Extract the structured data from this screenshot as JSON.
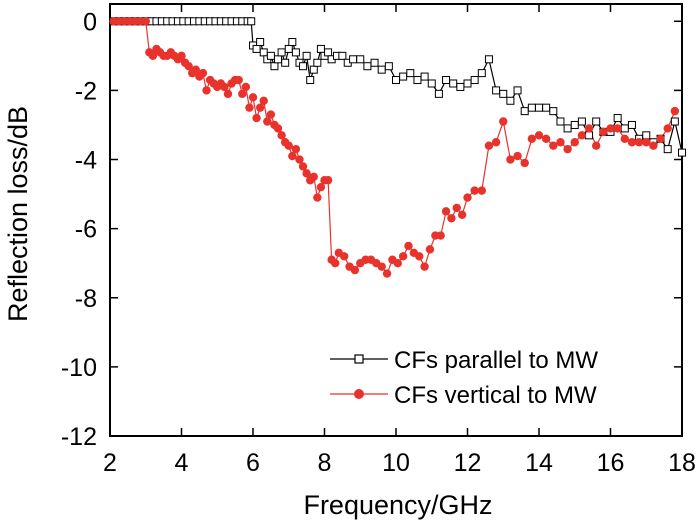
{
  "chart_data": {
    "type": "line",
    "title": "",
    "xlabel": "Frequency/GHz",
    "ylabel": "Reflection loss/dB",
    "xlim": [
      2,
      18
    ],
    "ylim": [
      -12,
      0.5
    ],
    "xticks": [
      2,
      4,
      6,
      8,
      10,
      12,
      14,
      16,
      18
    ],
    "yticks": [
      0,
      -2,
      -4,
      -6,
      -8,
      -10,
      -12
    ],
    "xtick_labels": [
      "2",
      "4",
      "6",
      "8",
      "10",
      "12",
      "14",
      "16",
      "18"
    ],
    "ytick_labels": [
      "0",
      "-2",
      "-4",
      "-6",
      "-8",
      "-10",
      "-12"
    ],
    "grid": false,
    "legend_position": "bottom-right",
    "series": [
      {
        "name": "CFs parallel to MW",
        "color": "#000000",
        "marker": "open-square",
        "x": [
          2.1,
          2.25,
          2.4,
          2.55,
          2.7,
          2.85,
          3.0,
          3.15,
          3.3,
          3.45,
          3.6,
          3.75,
          3.9,
          4.05,
          4.2,
          4.35,
          4.5,
          4.65,
          4.8,
          4.95,
          5.1,
          5.25,
          5.4,
          5.55,
          5.7,
          5.85,
          5.95,
          6.0,
          6.1,
          6.2,
          6.3,
          6.4,
          6.5,
          6.6,
          6.7,
          6.8,
          6.9,
          7.0,
          7.1,
          7.2,
          7.3,
          7.4,
          7.5,
          7.6,
          7.7,
          7.8,
          7.9,
          8.0,
          8.1,
          8.2,
          8.35,
          8.5,
          8.65,
          8.8,
          9.0,
          9.2,
          9.4,
          9.6,
          9.8,
          10.0,
          10.2,
          10.4,
          10.6,
          10.8,
          11.0,
          11.2,
          11.4,
          11.6,
          11.8,
          12.0,
          12.2,
          12.4,
          12.6,
          12.8,
          13.0,
          13.2,
          13.4,
          13.6,
          13.8,
          14.0,
          14.2,
          14.4,
          14.6,
          14.8,
          15.0,
          15.2,
          15.4,
          15.6,
          15.8,
          16.0,
          16.2,
          16.4,
          16.6,
          16.8,
          17.0,
          17.2,
          17.4,
          17.6,
          17.8,
          18.0
        ],
        "y": [
          0,
          0,
          0,
          0,
          0,
          0,
          0,
          0,
          0,
          0,
          0,
          0,
          0,
          0,
          0,
          0,
          0,
          0,
          0,
          0,
          0,
          0,
          0,
          0,
          0,
          0,
          0,
          -0.7,
          -0.8,
          -0.6,
          -0.9,
          -1.1,
          -1.0,
          -1.3,
          -1.1,
          -0.9,
          -1.2,
          -0.8,
          -0.6,
          -0.9,
          -1.2,
          -1.3,
          -1.0,
          -1.7,
          -1.4,
          -1.2,
          -0.8,
          -1.0,
          -0.9,
          -1.1,
          -1.0,
          -1.0,
          -1.2,
          -1.1,
          -1.1,
          -1.3,
          -1.2,
          -1.4,
          -1.3,
          -1.7,
          -1.6,
          -1.5,
          -1.7,
          -1.6,
          -1.8,
          -2.1,
          -1.7,
          -1.8,
          -1.9,
          -1.8,
          -1.7,
          -1.5,
          -1.1,
          -2.0,
          -2.1,
          -2.3,
          -2.0,
          -2.6,
          -2.5,
          -2.5,
          -2.5,
          -2.6,
          -2.9,
          -3.1,
          -3.0,
          -2.9,
          -3.3,
          -2.9,
          -3.2,
          -3.2,
          -2.8,
          -3.1,
          -3.0,
          -3.4,
          -3.3,
          -3.5,
          -3.4,
          -3.7,
          -2.9,
          -3.8
        ]
      },
      {
        "name": "CFs vertical to MW",
        "color": "#e8332d",
        "marker": "filled-circle",
        "x": [
          2.1,
          2.25,
          2.4,
          2.55,
          2.7,
          2.85,
          3.0,
          3.1,
          3.2,
          3.3,
          3.4,
          3.5,
          3.6,
          3.7,
          3.8,
          3.9,
          4.0,
          4.1,
          4.2,
          4.3,
          4.4,
          4.5,
          4.6,
          4.7,
          4.8,
          4.9,
          5.0,
          5.1,
          5.2,
          5.3,
          5.4,
          5.5,
          5.6,
          5.7,
          5.8,
          5.9,
          6.0,
          6.1,
          6.2,
          6.3,
          6.4,
          6.5,
          6.6,
          6.7,
          6.8,
          6.9,
          7.0,
          7.1,
          7.2,
          7.3,
          7.4,
          7.5,
          7.6,
          7.7,
          7.8,
          7.9,
          8.0,
          8.1,
          8.2,
          8.3,
          8.4,
          8.55,
          8.7,
          8.85,
          9.0,
          9.15,
          9.3,
          9.45,
          9.6,
          9.75,
          9.9,
          10.05,
          10.2,
          10.35,
          10.5,
          10.65,
          10.8,
          10.95,
          11.1,
          11.25,
          11.4,
          11.55,
          11.7,
          11.85,
          12.0,
          12.2,
          12.4,
          12.6,
          12.8,
          13.0,
          13.2,
          13.4,
          13.6,
          13.8,
          14.0,
          14.2,
          14.4,
          14.6,
          14.8,
          15.0,
          15.2,
          15.4,
          15.6,
          15.8,
          16.0,
          16.2,
          16.4,
          16.6,
          16.8,
          17.0,
          17.2,
          17.4,
          17.6,
          17.8
        ],
        "y": [
          0,
          0,
          0,
          0,
          0,
          0,
          0,
          -0.9,
          -1.0,
          -0.8,
          -0.9,
          -1.0,
          -1.0,
          -0.9,
          -1.0,
          -1.1,
          -1.0,
          -1.2,
          -1.3,
          -1.5,
          -1.4,
          -1.6,
          -1.5,
          -2.0,
          -1.7,
          -1.8,
          -1.9,
          -1.8,
          -1.9,
          -2.1,
          -1.8,
          -1.7,
          -1.7,
          -2.1,
          -1.9,
          -2.5,
          -2.2,
          -2.8,
          -2.5,
          -2.3,
          -2.9,
          -2.7,
          -3.0,
          -3.1,
          -3.3,
          -3.5,
          -3.6,
          -3.9,
          -3.7,
          -4.0,
          -4.2,
          -4.4,
          -4.6,
          -4.5,
          -5.1,
          -4.8,
          -4.6,
          -4.6,
          -6.9,
          -7.0,
          -6.7,
          -6.8,
          -7.1,
          -7.2,
          -7.0,
          -6.9,
          -6.9,
          -7.0,
          -7.1,
          -7.3,
          -6.9,
          -7.0,
          -6.8,
          -6.5,
          -6.7,
          -6.8,
          -7.1,
          -6.6,
          -6.2,
          -6.2,
          -5.5,
          -5.7,
          -5.4,
          -5.6,
          -5.1,
          -4.9,
          -4.9,
          -3.6,
          -3.5,
          -2.9,
          -4.0,
          -3.9,
          -4.1,
          -3.4,
          -3.3,
          -3.4,
          -3.6,
          -3.5,
          -3.7,
          -3.5,
          -3.3,
          -3.1,
          -3.6,
          -3.2,
          -3.1,
          -3.1,
          -3.4,
          -3.5,
          -3.5,
          -3.5,
          -3.6,
          -3.4,
          -3.1,
          -2.6
        ]
      }
    ]
  }
}
